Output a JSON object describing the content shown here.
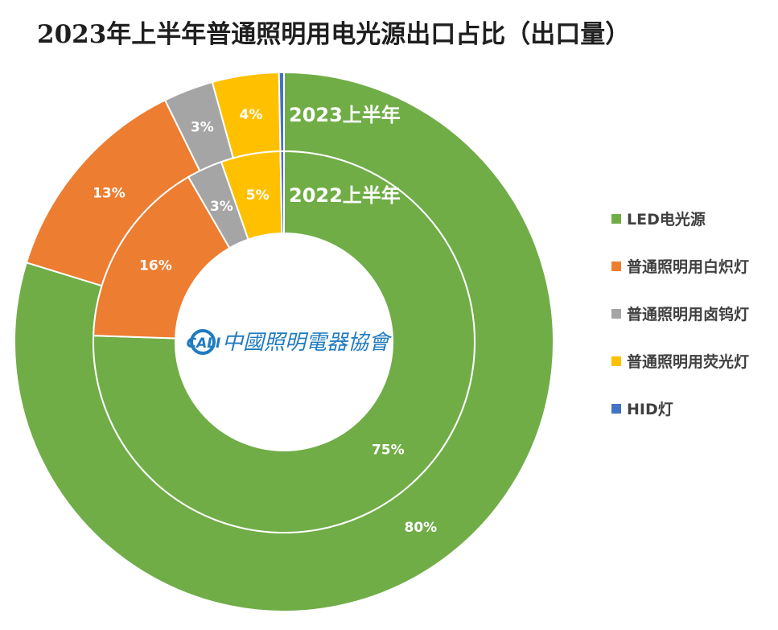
{
  "chart_data": {
    "type": "pie",
    "title": "2023年上半年普通照明用电光源出口占比（出口量）",
    "categories": [
      "LED电光源",
      "普通照明用白炽灯",
      "普通照明用卤钨灯",
      "普通照明用荧光灯",
      "HID灯"
    ],
    "series": [
      {
        "name": "2023上半年",
        "values": [
          80,
          13,
          3,
          4,
          0.3
        ],
        "labels": [
          "80%",
          "13%",
          "3%",
          "4%",
          ""
        ]
      },
      {
        "name": "2022上半年",
        "values": [
          75,
          16,
          3,
          5,
          0.3
        ],
        "labels": [
          "75%",
          "16%",
          "3%",
          "5%",
          ""
        ]
      }
    ],
    "colors": [
      "#70ad47",
      "#ed7d31",
      "#a5a5a5",
      "#ffc000",
      "#4472c4"
    ],
    "legend_position": "right",
    "center_logo_text": "中國照明電器協會",
    "center_logo_mark": "CALI"
  },
  "icons": {
    "center_logo": "cali-logo-icon"
  }
}
